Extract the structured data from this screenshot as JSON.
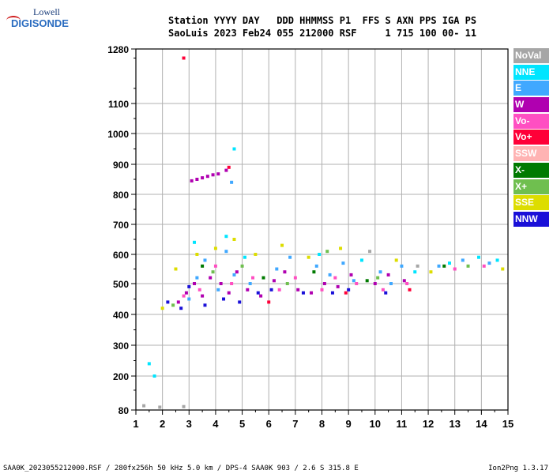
{
  "logo": {
    "line1": "Lowell",
    "line2": "DIGISONDE"
  },
  "header": {
    "line1": "Station YYYY DAY   DDD HHMMSS P1  FFS S AXN PPS IGA PS",
    "line2": "SaoLuis 2023 Feb24 055 212000 RSF     1 715 100 00- 11"
  },
  "footer": {
    "left": "SAA0K_2023055212000.RSF / 280fx256h 50 kHz 5.0 km / DPS-4 SAA0K 903 / 2.6 S 315.8 E",
    "right": "Ion2Png 1.3.17"
  },
  "legend": [
    {
      "label": "NoVal",
      "color": "#a6a6a6"
    },
    {
      "label": "NNE",
      "color": "#00e5ff"
    },
    {
      "label": "E",
      "color": "#40a8ff"
    },
    {
      "label": "W",
      "color": "#b000b0"
    },
    {
      "label": "Vo-",
      "color": "#ff4fc2"
    },
    {
      "label": "Vo+",
      "color": "#ff0038"
    },
    {
      "label": "SSW",
      "color": "#ffb3b3"
    },
    {
      "label": "X-",
      "color": "#007a00"
    },
    {
      "label": "X+",
      "color": "#6fbf4f"
    },
    {
      "label": "SSE",
      "color": "#dddd00"
    },
    {
      "label": "NNW",
      "color": "#1a10d8"
    }
  ],
  "chart_data": {
    "type": "scatter",
    "xlim": [
      1,
      15
    ],
    "ylim": [
      80,
      1280
    ],
    "x_ticks": [
      "1",
      "2",
      "3",
      "4",
      "5",
      "6",
      "7",
      "8",
      "9",
      "10",
      "11",
      "12",
      "13",
      "14",
      "15"
    ],
    "y_ticks": [
      "80",
      "200",
      "300",
      "400",
      "500",
      "600",
      "700",
      "800",
      "900",
      "1000",
      "1100",
      "1280"
    ],
    "grid": true,
    "series": [
      {
        "name": "E",
        "values": [
          [
            3.0,
            450
          ],
          [
            3.3,
            520
          ],
          [
            3.6,
            580
          ],
          [
            4.1,
            480
          ],
          [
            4.4,
            610
          ],
          [
            4.7,
            530
          ],
          [
            5.3,
            500
          ],
          [
            6.3,
            550
          ],
          [
            6.8,
            590
          ],
          [
            7.8,
            560
          ],
          [
            8.3,
            530
          ],
          [
            8.8,
            570
          ],
          [
            9.2,
            510
          ],
          [
            10.2,
            540
          ],
          [
            10.6,
            500
          ],
          [
            11.0,
            560
          ],
          [
            12.4,
            560
          ],
          [
            13.3,
            580
          ],
          [
            14.3,
            570
          ],
          [
            4.6,
            840
          ]
        ]
      },
      {
        "name": "W",
        "values": [
          [
            2.6,
            440
          ],
          [
            2.9,
            470
          ],
          [
            3.2,
            500
          ],
          [
            3.5,
            460
          ],
          [
            3.8,
            520
          ],
          [
            4.2,
            500
          ],
          [
            4.5,
            470
          ],
          [
            4.8,
            540
          ],
          [
            5.2,
            480
          ],
          [
            5.7,
            460
          ],
          [
            6.2,
            510
          ],
          [
            6.6,
            540
          ],
          [
            7.1,
            480
          ],
          [
            7.6,
            470
          ],
          [
            8.1,
            500
          ],
          [
            8.6,
            490
          ],
          [
            9.1,
            530
          ],
          [
            10.0,
            500
          ],
          [
            10.5,
            530
          ],
          [
            11.1,
            510
          ],
          [
            3.1,
            845
          ],
          [
            3.3,
            850
          ],
          [
            3.5,
            855
          ],
          [
            3.7,
            860
          ],
          [
            3.9,
            865
          ],
          [
            4.1,
            868
          ],
          [
            4.4,
            880
          ]
        ]
      },
      {
        "name": "Vo-",
        "values": [
          [
            2.8,
            460
          ],
          [
            3.4,
            480
          ],
          [
            4.0,
            560
          ],
          [
            4.6,
            500
          ],
          [
            5.4,
            520
          ],
          [
            6.4,
            480
          ],
          [
            7.0,
            520
          ],
          [
            8.0,
            480
          ],
          [
            8.5,
            520
          ],
          [
            9.3,
            500
          ],
          [
            10.3,
            480
          ],
          [
            11.2,
            500
          ],
          [
            13.0,
            550
          ],
          [
            14.1,
            560
          ]
        ]
      },
      {
        "name": "NNW",
        "values": [
          [
            2.2,
            440
          ],
          [
            2.7,
            420
          ],
          [
            3.0,
            490
          ],
          [
            3.6,
            430
          ],
          [
            4.3,
            450
          ],
          [
            4.9,
            440
          ],
          [
            5.6,
            470
          ],
          [
            6.1,
            480
          ],
          [
            7.3,
            470
          ],
          [
            8.4,
            470
          ],
          [
            9.0,
            480
          ],
          [
            10.4,
            470
          ]
        ]
      },
      {
        "name": "SSE",
        "values": [
          [
            2.0,
            420
          ],
          [
            2.5,
            550
          ],
          [
            3.3,
            600
          ],
          [
            4.0,
            620
          ],
          [
            4.7,
            650
          ],
          [
            5.5,
            600
          ],
          [
            6.5,
            630
          ],
          [
            7.5,
            590
          ],
          [
            8.7,
            620
          ],
          [
            10.8,
            580
          ],
          [
            12.1,
            540
          ],
          [
            14.8,
            550
          ]
        ]
      },
      {
        "name": "NNE",
        "values": [
          [
            3.2,
            640
          ],
          [
            4.4,
            660
          ],
          [
            5.1,
            590
          ],
          [
            7.9,
            600
          ],
          [
            9.5,
            580
          ],
          [
            11.5,
            540
          ],
          [
            12.8,
            570
          ],
          [
            13.9,
            590
          ],
          [
            14.6,
            580
          ],
          [
            4.7,
            950
          ],
          [
            1.5,
            240
          ],
          [
            1.7,
            200
          ]
        ]
      },
      {
        "name": "X+",
        "values": [
          [
            2.4,
            430
          ],
          [
            3.9,
            540
          ],
          [
            5.0,
            560
          ],
          [
            6.7,
            500
          ],
          [
            8.2,
            610
          ],
          [
            10.1,
            520
          ],
          [
            13.5,
            560
          ]
        ]
      },
      {
        "name": "Vo+",
        "values": [
          [
            2.8,
            1250
          ],
          [
            4.5,
            890
          ],
          [
            6.0,
            440
          ],
          [
            8.9,
            470
          ],
          [
            11.3,
            480
          ]
        ]
      },
      {
        "name": "X-",
        "values": [
          [
            3.5,
            560
          ],
          [
            5.8,
            520
          ],
          [
            7.7,
            540
          ],
          [
            9.7,
            510
          ],
          [
            12.6,
            560
          ]
        ]
      },
      {
        "name": "NoVal",
        "values": [
          [
            1.3,
            95
          ],
          [
            1.9,
            90
          ],
          [
            2.8,
            92
          ],
          [
            9.8,
            610
          ],
          [
            11.6,
            560
          ]
        ]
      }
    ]
  }
}
